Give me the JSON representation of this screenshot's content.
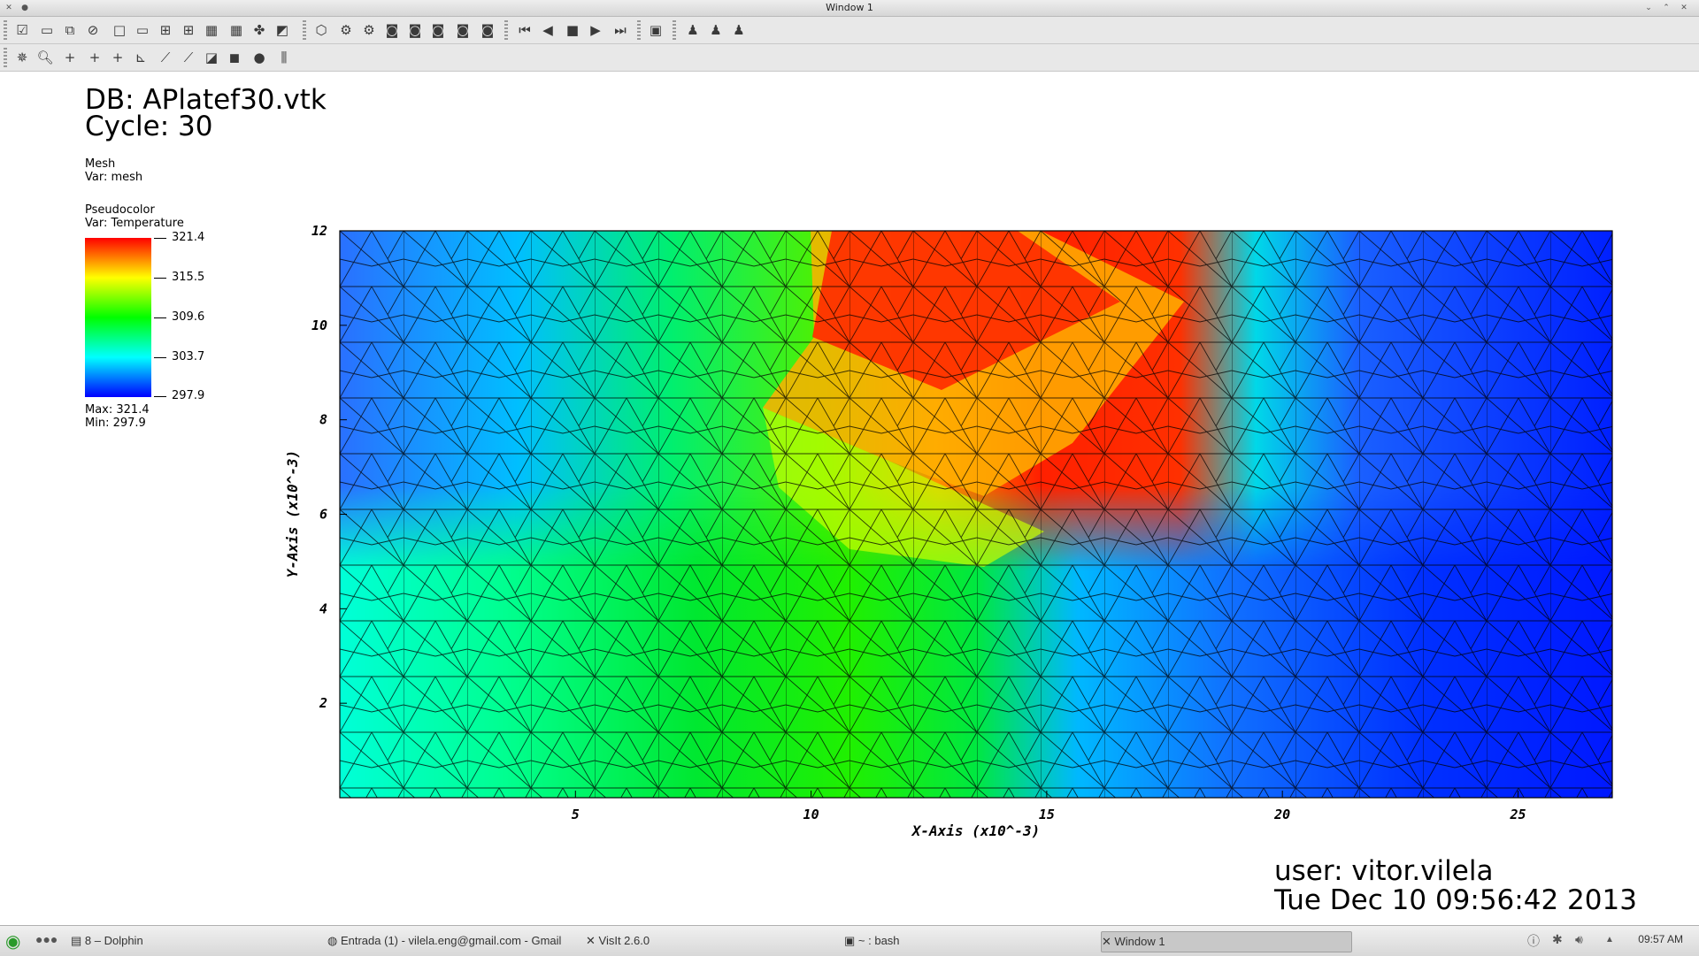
{
  "window": {
    "title": "Window 1"
  },
  "db": {
    "file_line": "DB: APlatef30.vtk",
    "cycle_line": "Cycle: 30"
  },
  "mesh_legend": {
    "plot": "Mesh",
    "var": "Var: mesh"
  },
  "pc_legend": {
    "plot": "Pseudocolor",
    "var": "Var: Temperature",
    "ticks": [
      "321.4",
      "315.5",
      "309.6",
      "303.7",
      "297.9"
    ],
    "max": "Max:  321.4",
    "min": "Min:  297.9"
  },
  "user_line": "user: vitor.vilela",
  "date_line": "Tue Dec 10 09:56:42 2013",
  "chart_data": {
    "type": "heatmap",
    "xlabel": "X-Axis  (x10^-3)",
    "ylabel": "Y-Axis  (x10^-3)",
    "x_ticks": [
      "5",
      "10",
      "15",
      "20",
      "25"
    ],
    "y_ticks": [
      "2",
      "4",
      "6",
      "8",
      "10",
      "12"
    ],
    "xlim": [
      0,
      27
    ],
    "ylim": [
      0,
      12
    ],
    "colorscale": [
      "#0000ff",
      "#00ffff",
      "#00ff00",
      "#ffff00",
      "#ff0000"
    ],
    "value_range": [
      297.9,
      321.4
    ]
  },
  "taskbar": {
    "items": [
      "8 – Dolphin",
      "Entrada (1) - vilela.eng@gmail.com - Gmail",
      "VisIt 2.6.0",
      "~ : bash",
      "Window 1"
    ],
    "clock": "09:57 AM"
  }
}
